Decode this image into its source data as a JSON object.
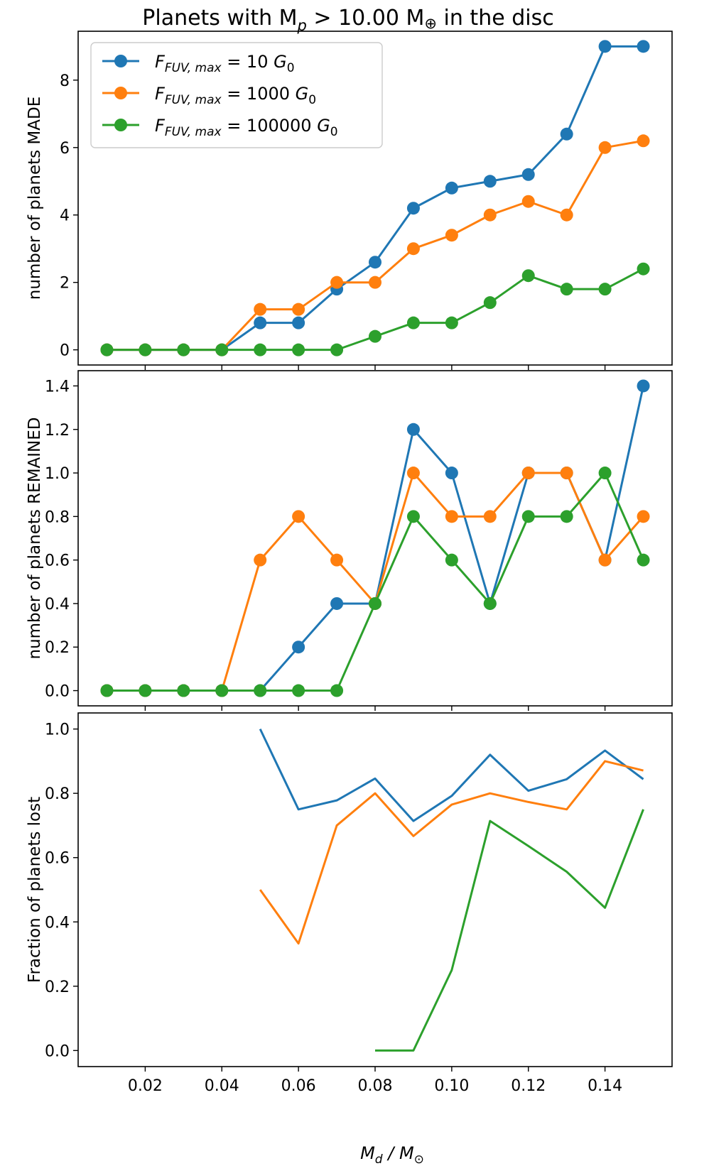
{
  "figure": {
    "title": "Planets with M",
    "title_sub": "p",
    "title_tail": " > 10.00 M",
    "title_symbol": "⊕",
    "title_end": " in the disc",
    "xlabel_main": "M",
    "xlabel_sub": "d",
    "xlabel_mid": " / M",
    "xlabel_sub2": "⊙"
  },
  "legend": [
    {
      "prefix": "F",
      "sub": "FUV, max",
      "suffix": " = 10 ",
      "unit": "G",
      "unit_sub": "0",
      "color": "#1f77b4"
    },
    {
      "prefix": "F",
      "sub": "FUV, max",
      "suffix": " = 1000 ",
      "unit": "G",
      "unit_sub": "0",
      "color": "#ff7f0e"
    },
    {
      "prefix": "F",
      "sub": "FUV, max",
      "suffix": " = 100000 ",
      "unit": "G",
      "unit_sub": "0",
      "color": "#2ca02c"
    }
  ],
  "chart_data": [
    {
      "type": "line",
      "ylabel": "number of planets MADE",
      "xlim": [
        0.0025,
        0.1575
      ],
      "ylim": [
        -0.45,
        9.45
      ],
      "yticks": [
        0,
        2,
        4,
        6,
        8
      ],
      "ytick_labels": [
        "0",
        "2",
        "4",
        "6",
        "8"
      ],
      "xticks": [
        0.02,
        0.04,
        0.06,
        0.08,
        0.1,
        0.12,
        0.14
      ],
      "xtick_labels": [],
      "markers": true,
      "legend_position": "upper-left",
      "series": [
        {
          "color": "#1f77b4",
          "x": [
            0.01,
            0.02,
            0.03,
            0.04,
            0.05,
            0.06,
            0.07,
            0.08,
            0.09,
            0.1,
            0.11,
            0.12,
            0.13,
            0.14,
            0.15
          ],
          "y": [
            0,
            0,
            0,
            0,
            0.8,
            0.8,
            1.8,
            2.6,
            4.2,
            4.8,
            5.0,
            5.2,
            6.4,
            9.0,
            9.0
          ]
        },
        {
          "color": "#ff7f0e",
          "x": [
            0.01,
            0.02,
            0.03,
            0.04,
            0.05,
            0.06,
            0.07,
            0.08,
            0.09,
            0.1,
            0.11,
            0.12,
            0.13,
            0.14,
            0.15
          ],
          "y": [
            0,
            0,
            0,
            0,
            1.2,
            1.2,
            2.0,
            2.0,
            3.0,
            3.4,
            4.0,
            4.4,
            4.0,
            6.0,
            6.2
          ]
        },
        {
          "color": "#2ca02c",
          "x": [
            0.01,
            0.02,
            0.03,
            0.04,
            0.05,
            0.06,
            0.07,
            0.08,
            0.09,
            0.1,
            0.11,
            0.12,
            0.13,
            0.14,
            0.15
          ],
          "y": [
            0,
            0,
            0,
            0,
            0,
            0,
            0,
            0.4,
            0.8,
            0.8,
            1.4,
            2.2,
            1.8,
            1.8,
            2.4
          ]
        }
      ]
    },
    {
      "type": "line",
      "ylabel": "number of planets REMAINED",
      "xlim": [
        0.0025,
        0.1575
      ],
      "ylim": [
        -0.07,
        1.47
      ],
      "yticks": [
        0.0,
        0.2,
        0.4,
        0.6,
        0.8,
        1.0,
        1.2,
        1.4
      ],
      "ytick_labels": [
        "0.0",
        "0.2",
        "0.4",
        "0.6",
        "0.8",
        "1.0",
        "1.2",
        "1.4"
      ],
      "xticks": [
        0.02,
        0.04,
        0.06,
        0.08,
        0.1,
        0.12,
        0.14
      ],
      "xtick_labels": [],
      "markers": true,
      "series": [
        {
          "color": "#1f77b4",
          "x": [
            0.01,
            0.02,
            0.03,
            0.04,
            0.05,
            0.06,
            0.07,
            0.08,
            0.09,
            0.1,
            0.11,
            0.12,
            0.13,
            0.14,
            0.15
          ],
          "y": [
            0,
            0,
            0,
            0,
            0,
            0.2,
            0.4,
            0.4,
            1.2,
            1.0,
            0.4,
            1.0,
            1.0,
            0.6,
            1.4
          ]
        },
        {
          "color": "#ff7f0e",
          "x": [
            0.01,
            0.02,
            0.03,
            0.04,
            0.05,
            0.06,
            0.07,
            0.08,
            0.09,
            0.1,
            0.11,
            0.12,
            0.13,
            0.14,
            0.15
          ],
          "y": [
            0,
            0,
            0,
            0,
            0.6,
            0.8,
            0.6,
            0.4,
            1.0,
            0.8,
            0.8,
            1.0,
            1.0,
            0.6,
            0.8
          ]
        },
        {
          "color": "#2ca02c",
          "x": [
            0.01,
            0.02,
            0.03,
            0.04,
            0.05,
            0.06,
            0.07,
            0.08,
            0.09,
            0.1,
            0.11,
            0.12,
            0.13,
            0.14,
            0.15
          ],
          "y": [
            0,
            0,
            0,
            0,
            0,
            0,
            0,
            0.4,
            0.8,
            0.6,
            0.4,
            0.8,
            0.8,
            1.0,
            0.6
          ]
        }
      ]
    },
    {
      "type": "line",
      "ylabel": "Fraction of planets lost",
      "xlim": [
        0.0025,
        0.1575
      ],
      "ylim": [
        -0.05,
        1.05
      ],
      "yticks": [
        0.0,
        0.2,
        0.4,
        0.6,
        0.8,
        1.0
      ],
      "ytick_labels": [
        "0.0",
        "0.2",
        "0.4",
        "0.6",
        "0.8",
        "1.0"
      ],
      "xticks": [
        0.02,
        0.04,
        0.06,
        0.08,
        0.1,
        0.12,
        0.14
      ],
      "xtick_labels": [
        "0.02",
        "0.04",
        "0.06",
        "0.08",
        "0.10",
        "0.12",
        "0.14"
      ],
      "markers": false,
      "series": [
        {
          "color": "#1f77b4",
          "x": [
            0.05,
            0.06,
            0.07,
            0.08,
            0.09,
            0.1,
            0.11,
            0.12,
            0.13,
            0.14,
            0.15
          ],
          "y": [
            1.0,
            0.75,
            0.778,
            0.846,
            0.714,
            0.792,
            0.92,
            0.808,
            0.844,
            0.933,
            0.844
          ]
        },
        {
          "color": "#ff7f0e",
          "x": [
            0.05,
            0.06,
            0.07,
            0.08,
            0.09,
            0.1,
            0.11,
            0.12,
            0.13,
            0.14,
            0.15
          ],
          "y": [
            0.5,
            0.333,
            0.7,
            0.8,
            0.667,
            0.765,
            0.8,
            0.773,
            0.75,
            0.9,
            0.871
          ]
        },
        {
          "color": "#2ca02c",
          "x": [
            0.08,
            0.09,
            0.1,
            0.11,
            0.12,
            0.13,
            0.14,
            0.15
          ],
          "y": [
            0.0,
            0.0,
            0.25,
            0.714,
            0.636,
            0.556,
            0.444,
            0.75
          ]
        }
      ]
    }
  ]
}
